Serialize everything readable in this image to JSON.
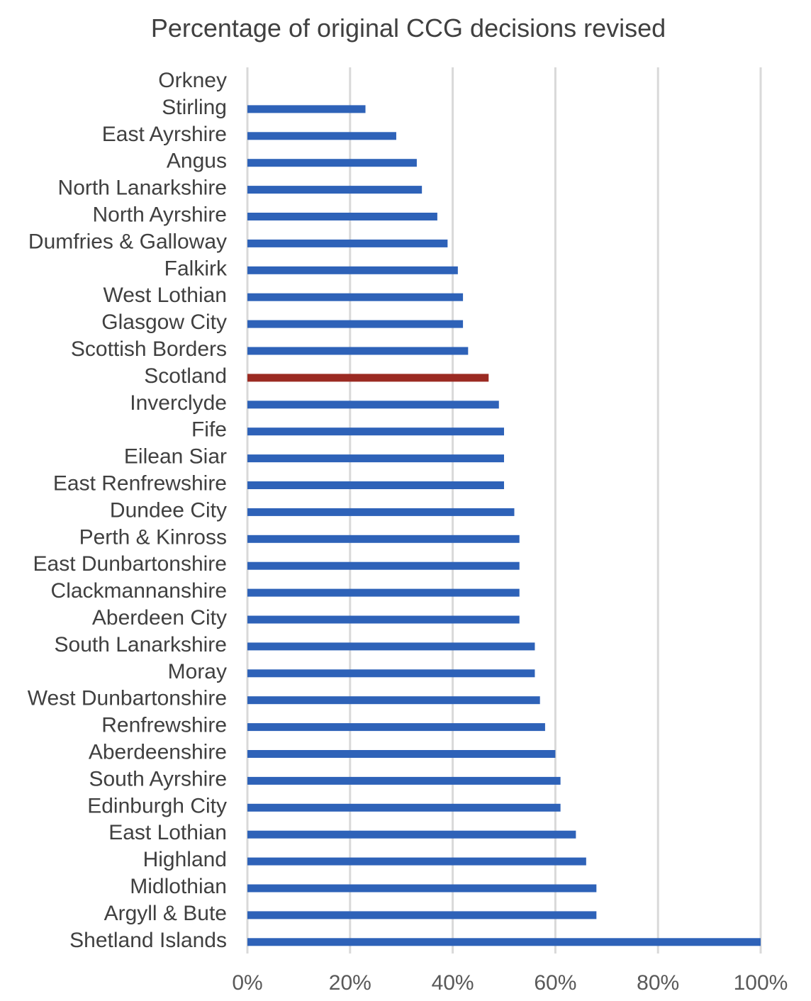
{
  "chart_data": {
    "type": "bar",
    "orientation": "horizontal",
    "title": "Percentage of original CCG decisions revised",
    "xlabel": "",
    "ylabel": "",
    "xlim": [
      0,
      100
    ],
    "grid": true,
    "legend": "none",
    "x_ticks": [
      "0%",
      "20%",
      "40%",
      "60%",
      "80%",
      "100%"
    ],
    "bar_color": "#2e62b8",
    "highlight_color": "#9b2a22",
    "highlight_category": "Scotland",
    "categories": [
      "Orkney",
      "Stirling",
      "East Ayrshire",
      "Angus",
      "North Lanarkshire",
      "North Ayrshire",
      "Dumfries & Galloway",
      "Falkirk",
      "West Lothian",
      "Glasgow City",
      "Scottish Borders",
      "Scotland",
      "Inverclyde",
      "Fife",
      "Eilean Siar",
      "East Renfrewshire",
      "Dundee City",
      "Perth & Kinross",
      "East Dunbartonshire",
      "Clackmannanshire",
      "Aberdeen City",
      "South Lanarkshire",
      "Moray",
      "West Dunbartonshire",
      "Renfrewshire",
      "Aberdeenshire",
      "South Ayrshire",
      "Edinburgh City",
      "East Lothian",
      "Highland",
      "Midlothian",
      "Argyll & Bute",
      "Shetland Islands"
    ],
    "values": [
      0,
      23,
      29,
      33,
      34,
      37,
      39,
      41,
      42,
      42,
      43,
      47,
      49,
      50,
      50,
      50,
      52,
      53,
      53,
      53,
      53,
      56,
      56,
      57,
      58,
      60,
      61,
      61,
      64,
      66,
      68,
      68,
      100
    ]
  }
}
